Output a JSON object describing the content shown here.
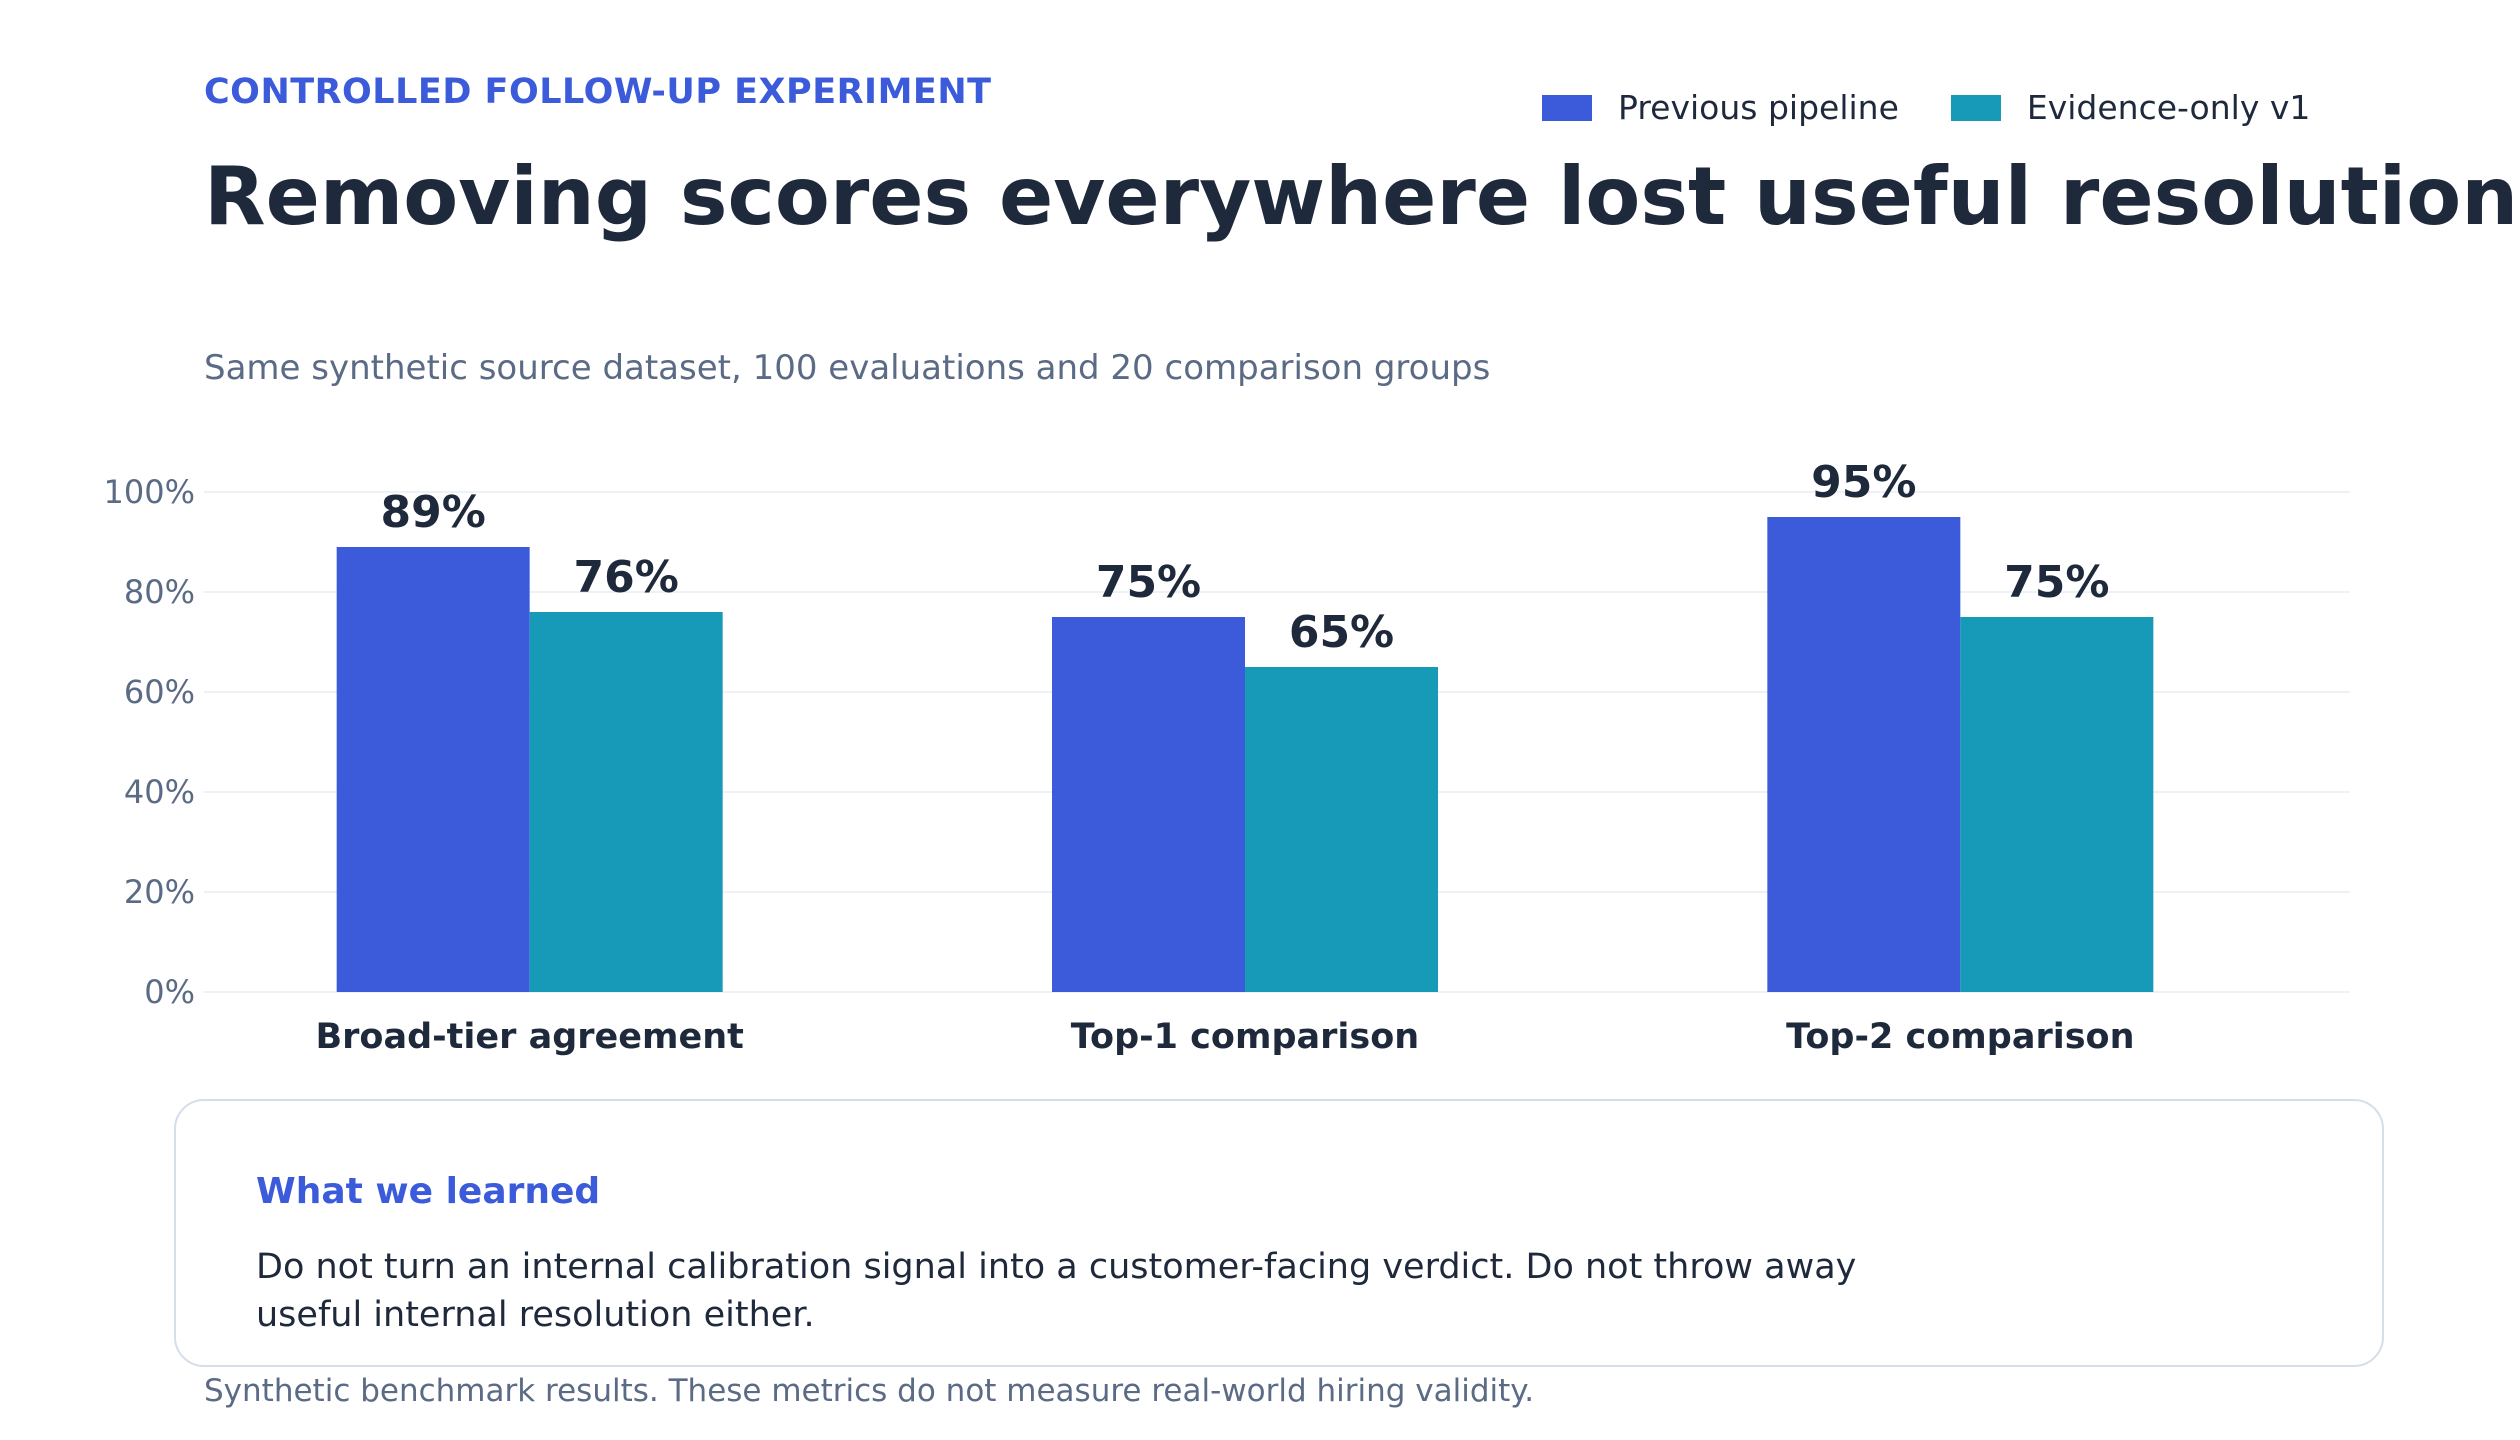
{
  "header": {
    "eyebrow": "CONTROLLED FOLLOW-UP EXPERIMENT",
    "title": "Removing scores everywhere lost useful resolution",
    "subtitle": "Same synthetic source dataset, 100 evaluations and 20 comparison groups"
  },
  "legend": [
    {
      "label": "Previous pipeline",
      "color": "#3b5bdb"
    },
    {
      "label": "Evidence-only v1",
      "color": "#1799b8"
    }
  ],
  "chart_data": {
    "type": "bar",
    "categories": [
      "Broad-tier agreement",
      "Top-1 comparison",
      "Top-2 comparison"
    ],
    "series": [
      {
        "name": "Previous pipeline",
        "values": [
          89,
          75,
          95
        ],
        "color": "#3b5bdb"
      },
      {
        "name": "Evidence-only v1",
        "values": [
          76,
          65,
          75
        ],
        "color": "#1799b8"
      }
    ],
    "value_labels": [
      [
        "89%",
        "75%",
        "95%"
      ],
      [
        "76%",
        "65%",
        "75%"
      ]
    ],
    "y_ticks": [
      0,
      20,
      40,
      60,
      80,
      100
    ],
    "y_tick_labels": [
      "0%",
      "20%",
      "40%",
      "60%",
      "80%",
      "100%"
    ],
    "ylim": [
      0,
      100
    ],
    "grid": true,
    "legend_position": "top-right"
  },
  "note": {
    "title": "What we learned",
    "body": "Do not turn an internal calibration signal into a customer-facing verdict. Do not throw away useful internal resolution either."
  },
  "footnote": "Synthetic benchmark results. These metrics do not measure real-world hiring validity."
}
